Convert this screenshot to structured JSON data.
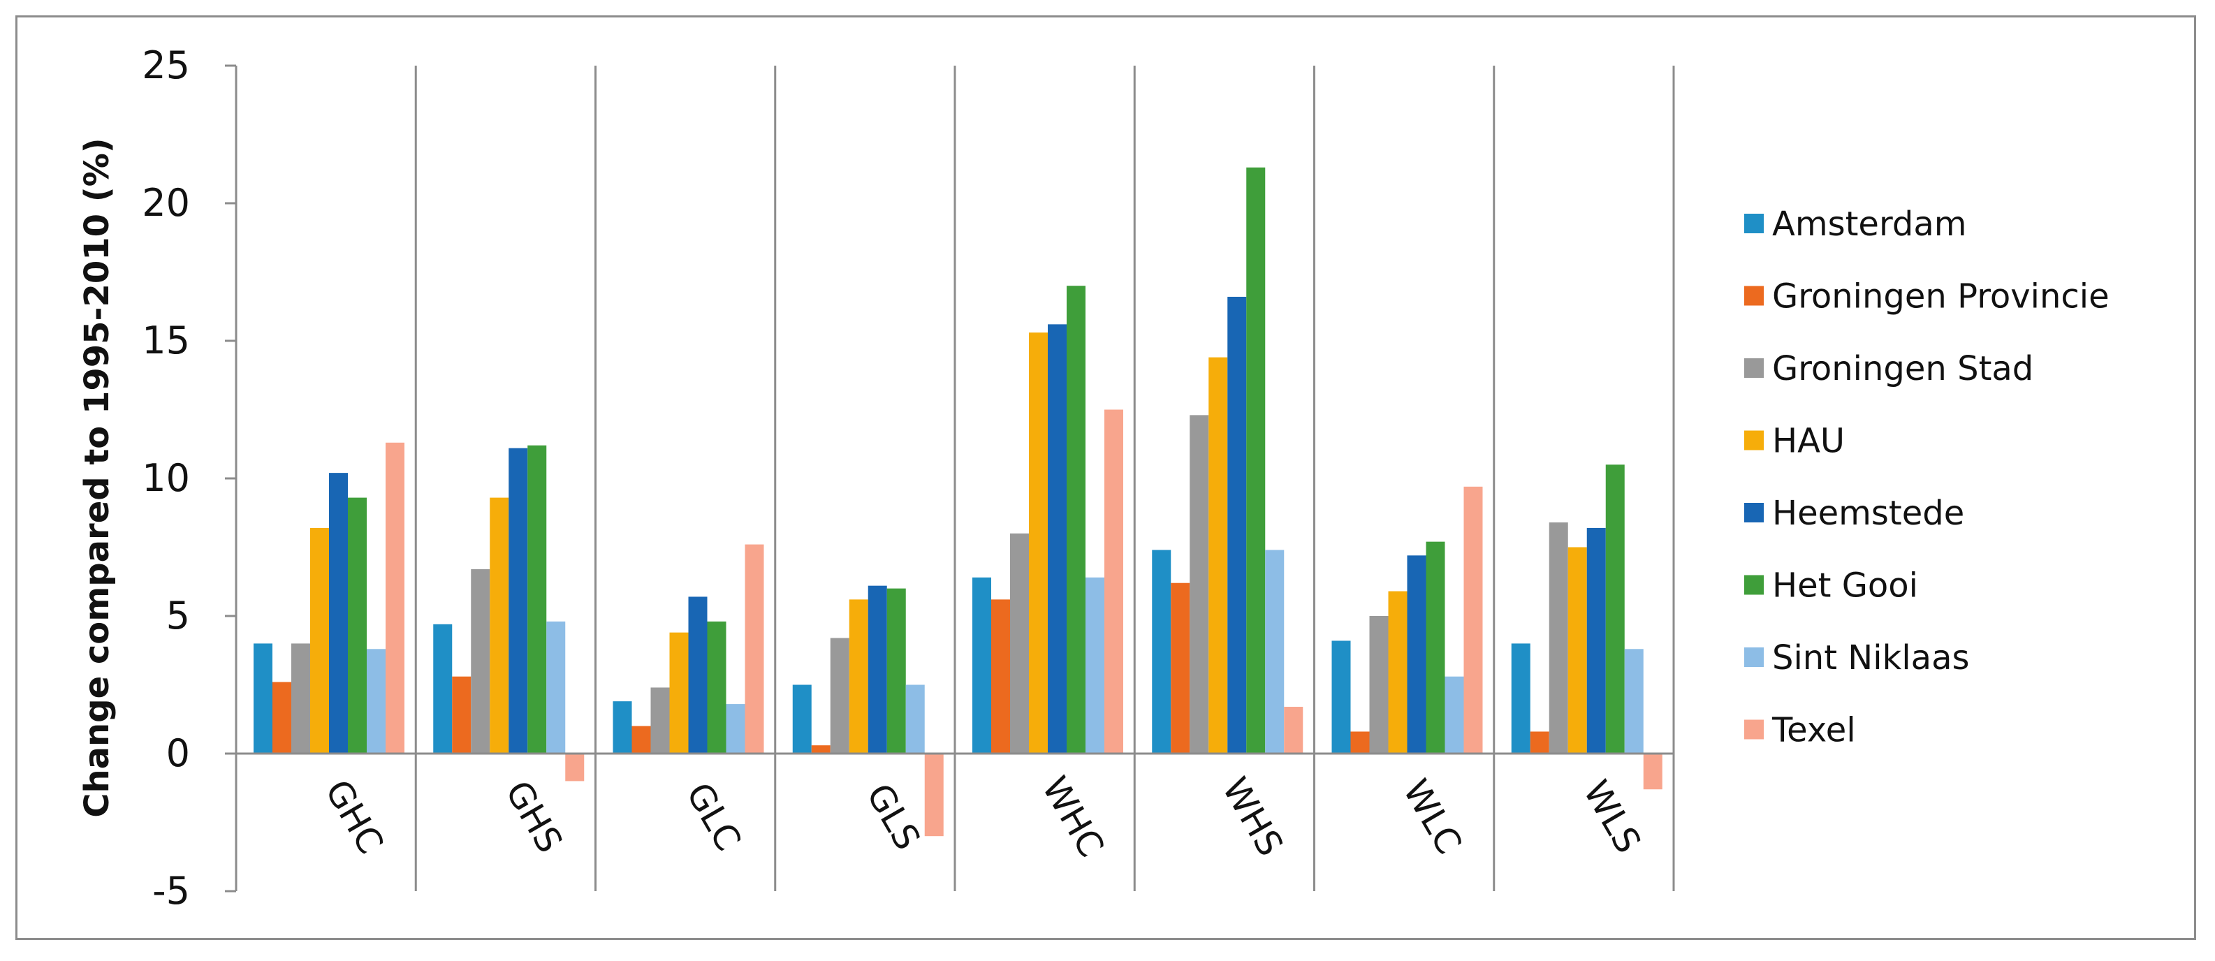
{
  "chart_data": {
    "type": "bar",
    "title": "",
    "xlabel": "",
    "ylabel": "Change compared to 1995-2010 (%)",
    "ylim": [
      -5,
      25
    ],
    "yticks": [
      -5,
      0,
      5,
      10,
      15,
      20,
      25
    ],
    "grid": false,
    "legend_position": "right",
    "categories": [
      "GHC",
      "GHS",
      "GLC",
      "GLS",
      "WHC",
      "WHS",
      "WLC",
      "WLS"
    ],
    "series": [
      {
        "name": "Amsterdam",
        "color": "#1f8fc6",
        "values": [
          4.0,
          4.7,
          1.9,
          2.5,
          6.4,
          7.4,
          4.1,
          4.0
        ]
      },
      {
        "name": "Groningen Provincie",
        "color": "#ec6a1f",
        "values": [
          2.6,
          2.8,
          1.0,
          0.3,
          5.6,
          6.2,
          0.8,
          0.8
        ]
      },
      {
        "name": "Groningen Stad",
        "color": "#999999",
        "values": [
          4.0,
          6.7,
          2.4,
          4.2,
          8.0,
          12.3,
          5.0,
          8.4
        ]
      },
      {
        "name": "HAU",
        "color": "#f6ad0a",
        "values": [
          8.2,
          9.3,
          4.4,
          5.6,
          15.3,
          14.4,
          5.9,
          7.5
        ]
      },
      {
        "name": "Heemstede",
        "color": "#1866b4",
        "values": [
          10.2,
          11.1,
          5.7,
          6.1,
          15.6,
          16.6,
          7.2,
          8.2
        ]
      },
      {
        "name": "Het Gooi",
        "color": "#3f9e3a",
        "values": [
          9.3,
          11.2,
          4.8,
          6.0,
          17.0,
          21.3,
          7.7,
          10.5
        ]
      },
      {
        "name": "Sint Niklaas",
        "color": "#8dbde6",
        "values": [
          3.8,
          4.8,
          1.8,
          2.5,
          6.4,
          7.4,
          2.8,
          3.8
        ]
      },
      {
        "name": "Texel",
        "color": "#f8a58d",
        "values": [
          11.3,
          -1.0,
          7.6,
          -3.0,
          12.5,
          1.7,
          9.7,
          -1.3
        ]
      }
    ]
  }
}
